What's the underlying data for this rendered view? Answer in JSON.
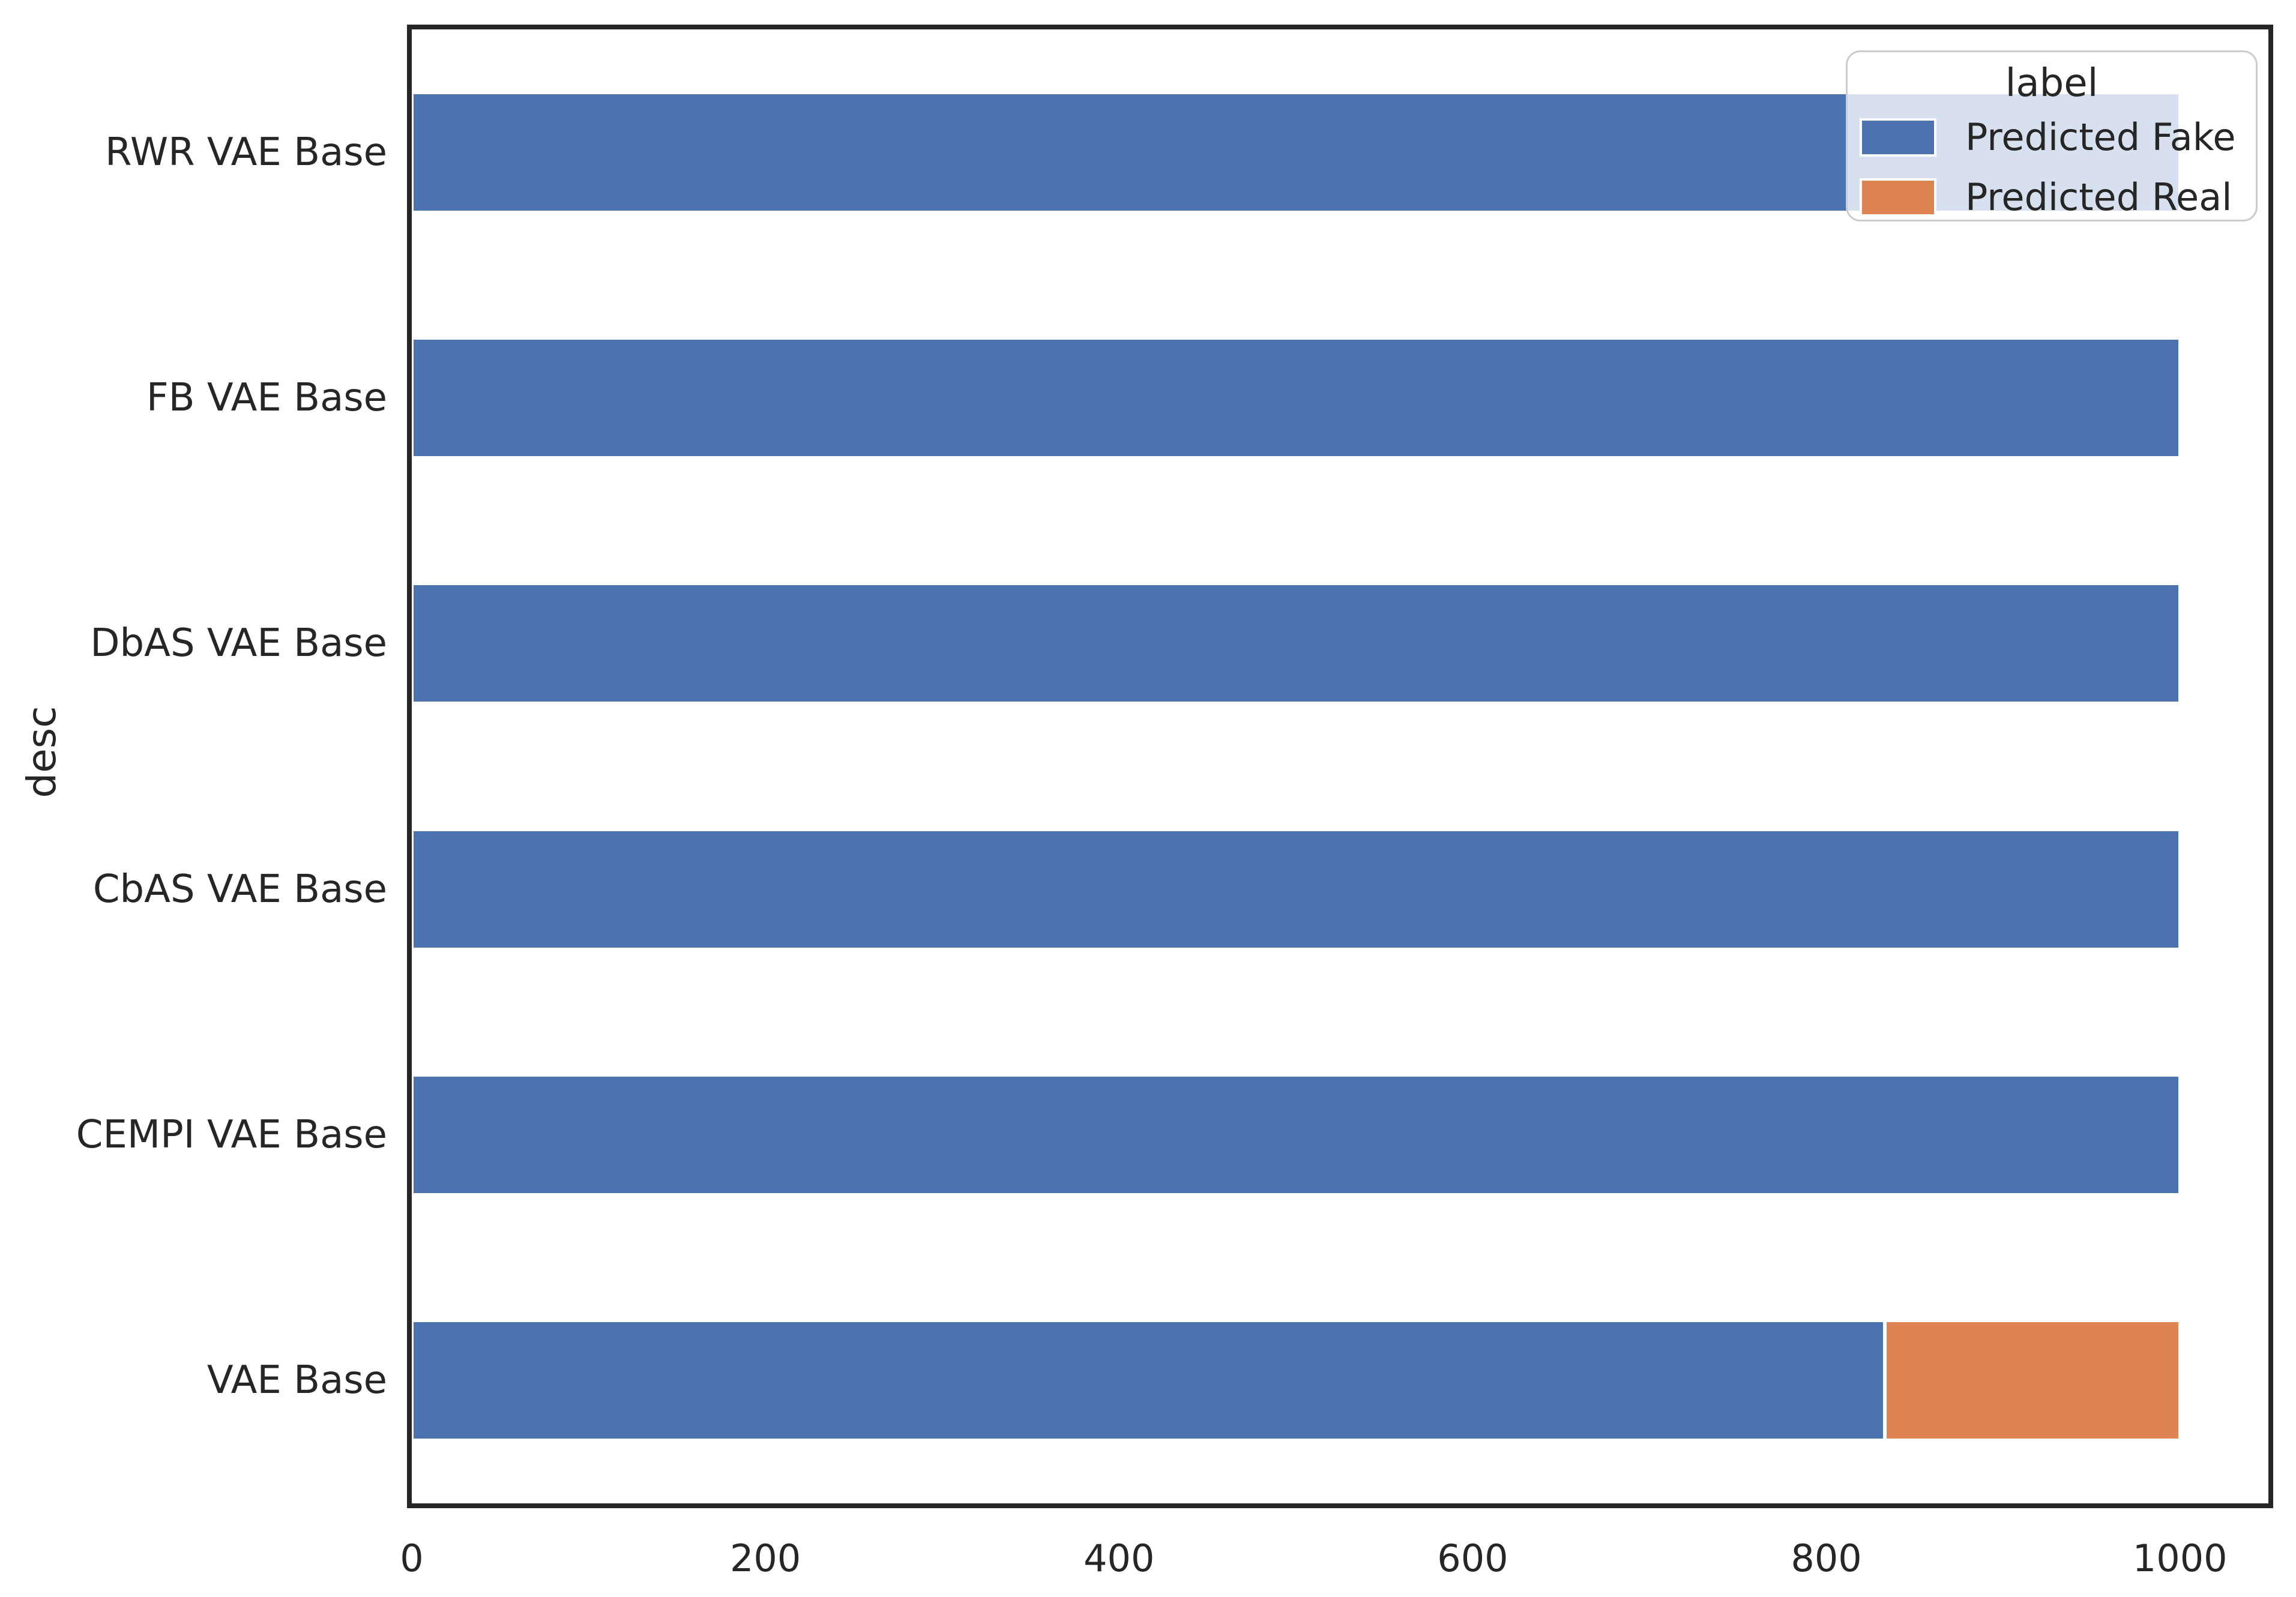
{
  "chart_data": {
    "type": "bar",
    "orientation": "horizontal",
    "stacked": true,
    "title": "",
    "xlabel": "",
    "ylabel": "desc",
    "categories": [
      "RWR VAE Base",
      "FB VAE Base",
      "DbAS VAE Base",
      "CbAS VAE Base",
      "CEMPI VAE Base",
      "VAE Base"
    ],
    "series": [
      {
        "name": "Predicted Fake",
        "color": "#4C72B0",
        "values": [
          1000,
          1000,
          1000,
          1000,
          1000,
          833
        ]
      },
      {
        "name": "Predicted Real",
        "color": "#DD8452",
        "values": [
          0,
          0,
          0,
          0,
          0,
          167
        ]
      }
    ],
    "x_ticks": [
      0,
      200,
      400,
      600,
      800,
      1000
    ],
    "xlim": [
      0,
      1050
    ],
    "grid": false,
    "legend": {
      "title": "label",
      "position": "upper right",
      "entries": [
        "Predicted Fake",
        "Predicted Real"
      ]
    }
  },
  "style": {
    "background_color": "#ffffff",
    "spine_color": "#262626",
    "text_color": "#262626",
    "bar_edge_color": "#ffffff",
    "legend_border_color": "#cccccc",
    "series_colors": {
      "predicted_fake": "#4C72B0",
      "predicted_real": "#DD8452"
    }
  }
}
